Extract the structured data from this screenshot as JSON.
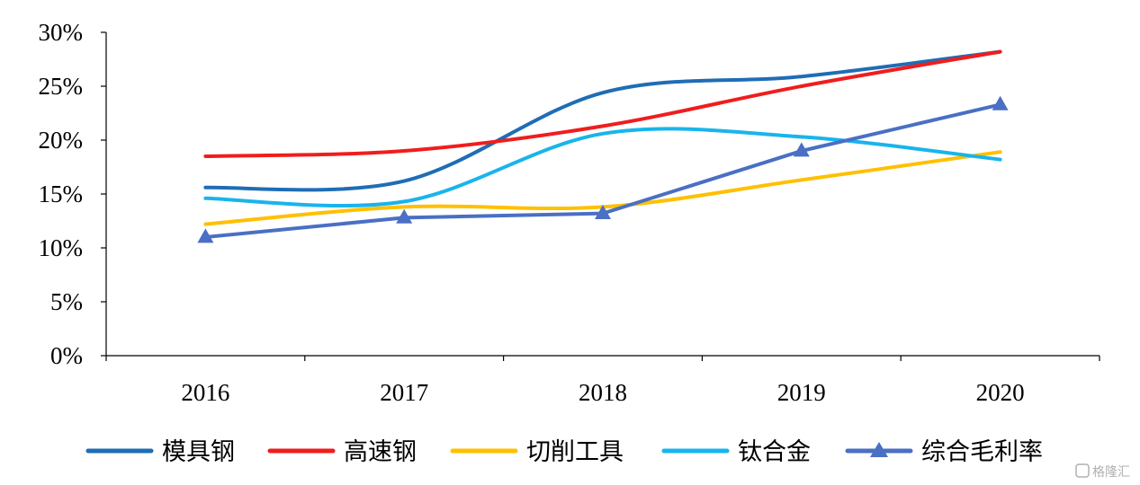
{
  "chart_data": {
    "type": "line",
    "title": "",
    "xlabel": "",
    "ylabel": "",
    "categories": [
      "2016",
      "2017",
      "2018",
      "2019",
      "2020"
    ],
    "ylim": [
      0,
      30
    ],
    "yticks": [
      "0%",
      "5%",
      "10%",
      "15%",
      "20%",
      "25%",
      "30%"
    ],
    "ytick_values": [
      0,
      5,
      10,
      15,
      20,
      25,
      30
    ],
    "grid": false,
    "legend_position": "bottom",
    "series": [
      {
        "name": "模具钢",
        "values": [
          15.6,
          16.2,
          24.4,
          25.9,
          28.2
        ],
        "color": "#1F6DB5",
        "smooth": true,
        "marker": "none"
      },
      {
        "name": "高速钢",
        "values": [
          18.5,
          19.0,
          21.3,
          25.0,
          28.2
        ],
        "color": "#F01D1D",
        "smooth": true,
        "marker": "none"
      },
      {
        "name": "切削工具",
        "values": [
          12.2,
          13.8,
          13.8,
          16.3,
          18.9
        ],
        "color": "#FFC000",
        "smooth": true,
        "marker": "none"
      },
      {
        "name": "钛合金",
        "values": [
          14.6,
          14.3,
          20.6,
          20.3,
          18.2
        ],
        "color": "#19B4EC",
        "smooth": true,
        "marker": "none"
      },
      {
        "name": "综合毛利率",
        "values": [
          11.0,
          12.8,
          13.2,
          19.0,
          23.3
        ],
        "color": "#4A6FC4",
        "smooth": false,
        "marker": "triangle"
      }
    ]
  },
  "watermark": "格隆汇"
}
